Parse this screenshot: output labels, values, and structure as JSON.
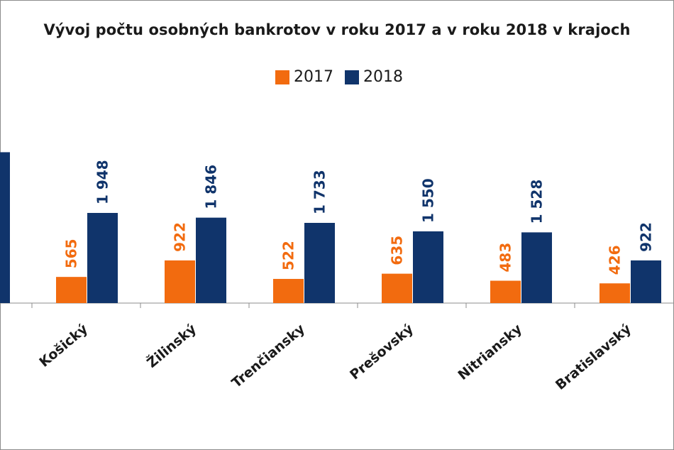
{
  "chart_data": {
    "type": "bar",
    "title": "Vývoj počtu osobných bankrotov v roku 2017 a v roku 2018 v krajoch",
    "xlabel": "",
    "ylabel": "",
    "categories": [
      "",
      "Košický",
      "Žilinský",
      "Trenčiansky",
      "Prešovský",
      "Nitriansky",
      "Bratislavský"
    ],
    "category_labels": [
      "Košický",
      "Žilinský",
      "Trenčiansky",
      "Prešovský",
      "Nitriansky",
      "Bratislavský"
    ],
    "series": [
      {
        "name": "2017",
        "color": "#f26b0f",
        "values": [
          null,
          565,
          922,
          522,
          635,
          483,
          426
        ],
        "labels": [
          "",
          "565",
          "922",
          "522",
          "635",
          "483",
          "426"
        ]
      },
      {
        "name": "2018",
        "color": "#10346b",
        "values": [
          null,
          1948,
          1846,
          1733,
          1550,
          1528,
          922
        ],
        "labels": [
          "",
          "1 948",
          "1 846",
          "1 733",
          "1 550",
          "1 528",
          "922"
        ]
      }
    ],
    "partial_left_bar": {
      "series": "2018",
      "value": 3260
    },
    "grid": false,
    "legend_position": "top-center"
  }
}
